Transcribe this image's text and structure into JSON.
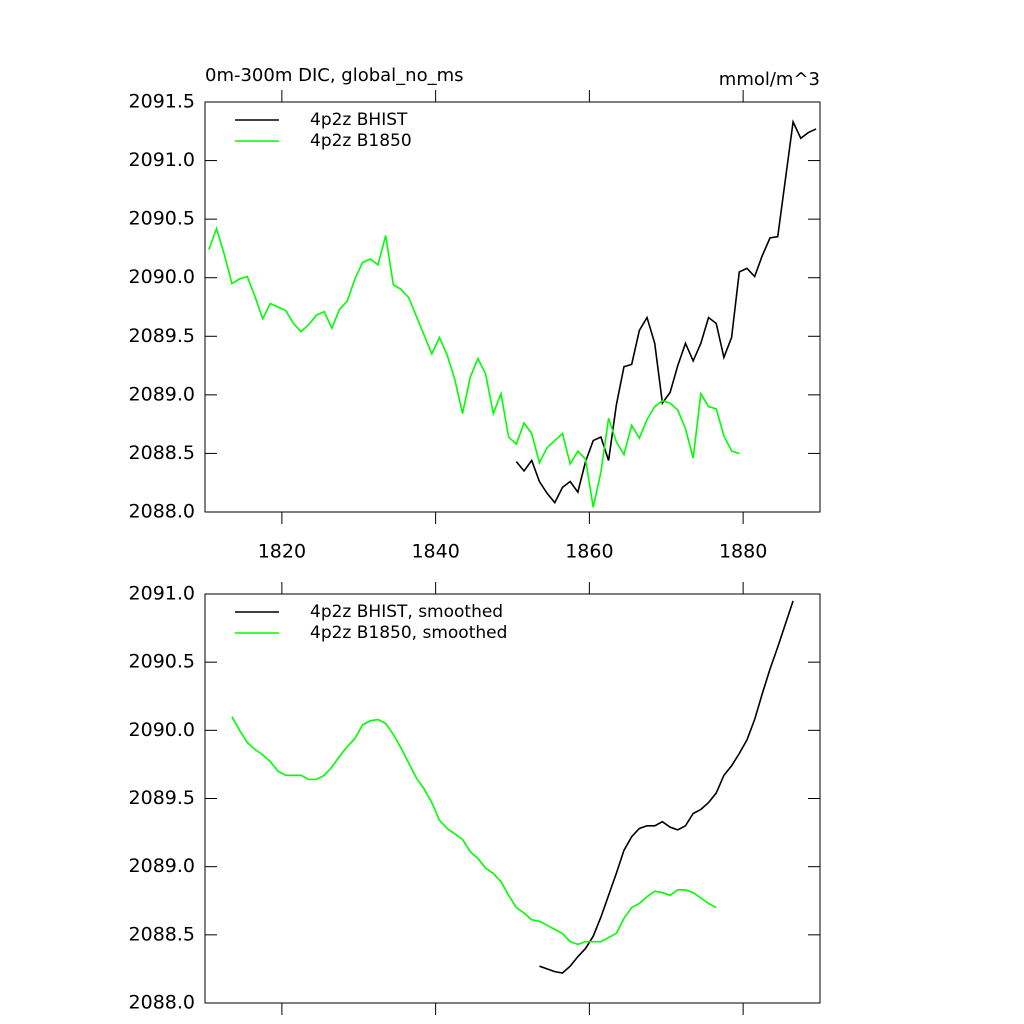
{
  "chart_data": [
    {
      "type": "line",
      "title": "0m-300m DIC, global_no_ms",
      "units": "mmol/m^3",
      "xlim": [
        1810,
        1890
      ],
      "xticks": [
        1820,
        1840,
        1860,
        1880
      ],
      "xtick_labels": true,
      "ylim": [
        2088,
        2091.5
      ],
      "yticks": [
        {
          "value": 2088,
          "label": "2088.0"
        },
        2088.5,
        {
          "value": 2089,
          "label": "2089.0"
        },
        2089.5,
        {
          "value": 2090,
          "label": "2090.0"
        },
        2090.5,
        {
          "value": 2091,
          "label": "2091.0"
        },
        2091.5
      ],
      "legend": "upper-left",
      "series": [
        {
          "name": "4p2z BHIST",
          "color": "#000000",
          "x": [
            1850.5,
            1851.5,
            1852.5,
            1853.5,
            1854.5,
            1855.5,
            1856.5,
            1857.5,
            1858.5,
            1859.5,
            1860.5,
            1861.5,
            1862.5,
            1863.5,
            1864.5,
            1865.5,
            1866.5,
            1867.5,
            1868.5,
            1869.5,
            1870.5,
            1871.5,
            1872.5,
            1873.5,
            1874.5,
            1875.5,
            1876.5,
            1877.5,
            1878.5,
            1879.5,
            1880.5,
            1881.5,
            1882.5,
            1883.5,
            1884.5,
            1885.5,
            1886.5,
            1887.5,
            1888.5,
            1889.5
          ],
          "values": [
            2088.43,
            2088.35,
            2088.44,
            2088.26,
            2088.16,
            2088.08,
            2088.21,
            2088.26,
            2088.17,
            2088.43,
            2088.61,
            2088.64,
            2088.44,
            2088.91,
            2089.24,
            2089.26,
            2089.55,
            2089.66,
            2089.44,
            2088.93,
            2089.02,
            2089.25,
            2089.44,
            2089.29,
            2089.44,
            2089.66,
            2089.61,
            2089.32,
            2089.49,
            2090.05,
            2090.08,
            2090.01,
            2090.19,
            2090.34,
            2090.35,
            2090.84,
            2091.33,
            2091.19,
            2091.24,
            2091.27
          ]
        },
        {
          "name": "4p2z B1850",
          "color": "#00ff00",
          "x": [
            1810.5,
            1811.5,
            1812.5,
            1813.5,
            1814.5,
            1815.5,
            1816.5,
            1817.5,
            1818.5,
            1819.5,
            1820.5,
            1821.5,
            1822.5,
            1823.5,
            1824.5,
            1825.5,
            1826.5,
            1827.5,
            1828.5,
            1829.5,
            1830.5,
            1831.5,
            1832.5,
            1833.5,
            1834.5,
            1835.5,
            1836.5,
            1837.5,
            1838.5,
            1839.5,
            1840.5,
            1841.5,
            1842.5,
            1843.5,
            1844.5,
            1845.5,
            1846.5,
            1847.5,
            1848.5,
            1849.5,
            1850.5,
            1851.5,
            1852.5,
            1853.5,
            1854.5,
            1855.5,
            1856.5,
            1857.5,
            1858.5,
            1859.5,
            1860.5,
            1861.5,
            1862.5,
            1863.5,
            1864.5,
            1865.5,
            1866.5,
            1867.5,
            1868.5,
            1869.5,
            1870.5,
            1871.5,
            1872.5,
            1873.5,
            1874.5,
            1875.5,
            1876.5,
            1877.5,
            1878.5,
            1879.5
          ],
          "values": [
            2090.24,
            2090.42,
            2090.2,
            2089.95,
            2089.99,
            2090.01,
            2089.84,
            2089.65,
            2089.78,
            2089.75,
            2089.72,
            2089.61,
            2089.54,
            2089.6,
            2089.68,
            2089.71,
            2089.57,
            2089.73,
            2089.8,
            2089.99,
            2090.13,
            2090.16,
            2090.11,
            2090.36,
            2089.94,
            2089.9,
            2089.83,
            2089.67,
            2089.51,
            2089.35,
            2089.49,
            2089.34,
            2089.13,
            2088.84,
            2089.15,
            2089.31,
            2089.18,
            2088.84,
            2089.01,
            2088.64,
            2088.58,
            2088.76,
            2088.67,
            2088.42,
            2088.55,
            2088.61,
            2088.67,
            2088.41,
            2088.52,
            2088.45,
            2088.04,
            2088.34,
            2088.8,
            2088.6,
            2088.49,
            2088.74,
            2088.63,
            2088.79,
            2088.9,
            2088.95,
            2088.93,
            2088.87,
            2088.71,
            2088.46,
            2089.01,
            2088.9,
            2088.88,
            2088.65,
            2088.52,
            2088.5
          ]
        }
      ]
    },
    {
      "type": "line",
      "xlim": [
        1810,
        1890
      ],
      "xticks": [
        1820,
        1840,
        1860,
        1880
      ],
      "xtick_labels": false,
      "ylim": [
        2088,
        2091
      ],
      "yticks": [
        {
          "value": 2088,
          "label": "2088.0"
        },
        2088.5,
        {
          "value": 2089,
          "label": "2089.0"
        },
        2089.5,
        {
          "value": 2090,
          "label": "2090.0"
        },
        2090.5,
        {
          "value": 2091,
          "label": "2091.0"
        }
      ],
      "legend": "upper-left",
      "series": [
        {
          "name": "4p2z BHIST, smoothed",
          "color": "#000000",
          "x": [
            1853.5,
            1854.5,
            1855.5,
            1856.5,
            1857.5,
            1858.5,
            1859.5,
            1860.5,
            1861.5,
            1862.5,
            1863.5,
            1864.5,
            1865.5,
            1866.5,
            1867.5,
            1868.5,
            1869.5,
            1870.5,
            1871.5,
            1872.5,
            1873.5,
            1874.5,
            1875.5,
            1876.5,
            1877.5,
            1878.5,
            1879.5,
            1880.5,
            1881.5,
            1882.5,
            1883.5,
            1884.5,
            1885.5,
            1886.5
          ],
          "values": [
            2088.27,
            2088.25,
            2088.23,
            2088.22,
            2088.27,
            2088.34,
            2088.4,
            2088.49,
            2088.63,
            2088.79,
            2088.95,
            2089.12,
            2089.22,
            2089.28,
            2089.3,
            2089.3,
            2089.33,
            2089.29,
            2089.27,
            2089.3,
            2089.39,
            2089.42,
            2089.47,
            2089.54,
            2089.67,
            2089.74,
            2089.83,
            2089.93,
            2090.08,
            2090.27,
            2090.45,
            2090.61,
            2090.78,
            2090.95
          ]
        },
        {
          "name": "4p2z B1850, smoothed",
          "color": "#00ff00",
          "x": [
            1813.5,
            1814.5,
            1815.5,
            1816.5,
            1817.5,
            1818.5,
            1819.5,
            1820.5,
            1821.5,
            1822.5,
            1823.5,
            1824.5,
            1825.5,
            1826.5,
            1827.5,
            1828.5,
            1829.5,
            1830.5,
            1831.5,
            1832.5,
            1833.5,
            1834.5,
            1835.5,
            1836.5,
            1837.5,
            1838.5,
            1839.5,
            1840.5,
            1841.5,
            1842.5,
            1843.5,
            1844.5,
            1845.5,
            1846.5,
            1847.5,
            1848.5,
            1849.5,
            1850.5,
            1851.5,
            1852.5,
            1853.5,
            1854.5,
            1855.5,
            1856.5,
            1857.5,
            1858.5,
            1859.5,
            1860.5,
            1861.5,
            1862.5,
            1863.5,
            1864.5,
            1865.5,
            1866.5,
            1867.5,
            1868.5,
            1869.5,
            1870.5,
            1871.5,
            1872.5,
            1873.5,
            1874.5,
            1875.5,
            1876.5
          ],
          "values": [
            2090.1,
            2090.0,
            2089.91,
            2089.86,
            2089.82,
            2089.77,
            2089.7,
            2089.67,
            2089.67,
            2089.67,
            2089.64,
            2089.64,
            2089.67,
            2089.73,
            2089.81,
            2089.88,
            2089.94,
            2090.04,
            2090.07,
            2090.08,
            2090.05,
            2089.97,
            2089.87,
            2089.76,
            2089.65,
            2089.57,
            2089.47,
            2089.34,
            2089.28,
            2089.24,
            2089.2,
            2089.11,
            2089.06,
            2088.99,
            2088.95,
            2088.89,
            2088.79,
            2088.7,
            2088.66,
            2088.61,
            2088.6,
            2088.57,
            2088.54,
            2088.51,
            2088.45,
            2088.43,
            2088.45,
            2088.45,
            2088.45,
            2088.48,
            2088.51,
            2088.62,
            2088.7,
            2088.73,
            2088.78,
            2088.82,
            2088.81,
            2088.79,
            2088.83,
            2088.83,
            2088.81,
            2088.77,
            2088.73,
            2088.7
          ]
        }
      ]
    }
  ]
}
